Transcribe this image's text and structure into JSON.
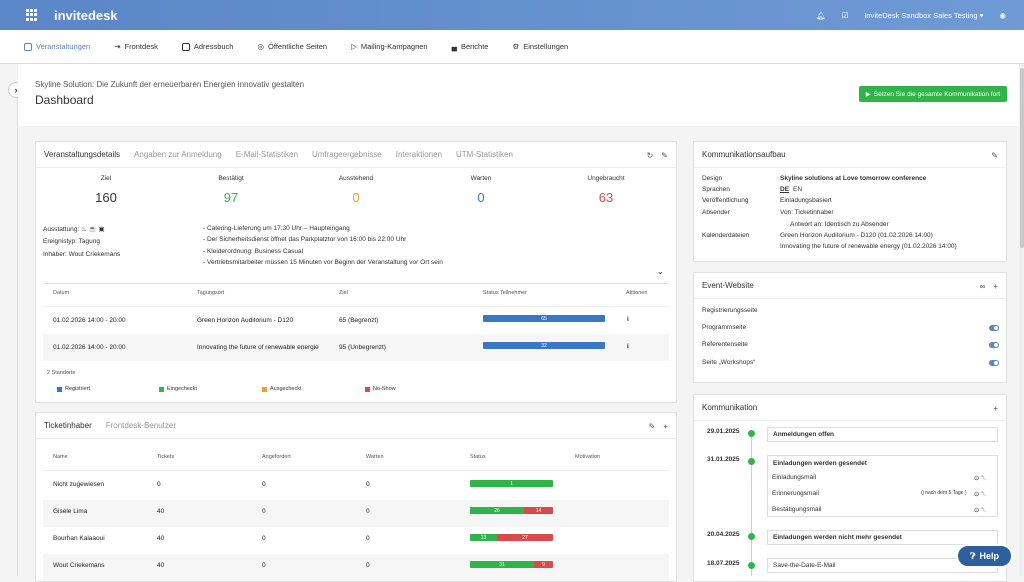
{
  "app": {
    "logo": "invitedesk",
    "account": "InviteDesk Sandbox Sales Testing"
  },
  "nav": [
    "Veranstaltungen",
    "Frontdesk",
    "Adressbuch",
    "Öffentliche Seiten",
    "Mailing-Kampagnen",
    "Berichte",
    "Einstellungen"
  ],
  "header": {
    "event_title": "Skyline Solution: Die Zukunft der erneuerbaren Energien innovativ gestalten",
    "page_title": "Dashboard",
    "action_button": "Setzen Sie die gesamte Kommunikation fort"
  },
  "details": {
    "tabs": [
      "Veranstaltungsdetails",
      "Angaben zur Anmeldung",
      "E-Mail-Statistiken",
      "Umfrageergebnisse",
      "Interaktionen",
      "UTM-Statistiken"
    ],
    "stats": [
      {
        "label": "Ziel",
        "value": "160",
        "color": "#333333"
      },
      {
        "label": "Bestätigt",
        "value": "97",
        "color": "#2fb44a"
      },
      {
        "label": "Ausstehend",
        "value": "0",
        "color": "#f0a030"
      },
      {
        "label": "Warten",
        "value": "0",
        "color": "#3a78c4"
      },
      {
        "label": "Ungebraucht",
        "value": "63",
        "color": "#d94a4a"
      }
    ],
    "ausstattung_label": "Ausstattung:",
    "ereignistyp": "Ereignistyp: Tagung",
    "inhaber": "Inhaber: Wout Criekemans",
    "notes": [
      "- Catering-Lieferung um 17:30 Uhr – Haupteingang",
      "- Der Sicherheitsdienst öffnet das Parkplatztor von 16:00 bis 22:00 Uhr",
      "- Kleiderordnung: Business Casual",
      "- Vertriebsmitarbeiter müssen 15 Minuten vor Beginn der Veranstaltung vor Ort sein"
    ],
    "columns": [
      "Datum",
      "Tagungsort",
      "Ziel",
      "Status Teilnehmer",
      "Aktionen"
    ],
    "rows": [
      {
        "datum": "01.02.2026 14:00 - 20:00",
        "ort": "Green Horizon Auditorium - D120",
        "ziel": "65 (Begrenzt)",
        "bar": "65"
      },
      {
        "datum": "01.02.2026 14:00 - 20:00",
        "ort": "Innovating the future of renewable energie",
        "ziel": "95 (Unbegrenzt)",
        "bar": "32"
      }
    ],
    "standorte": "2 Standorte",
    "legend": [
      {
        "label": "Registriert",
        "color": "#3a78c4"
      },
      {
        "label": "Eingecheckt",
        "color": "#2fb44a"
      },
      {
        "label": "Ausgecheckt",
        "color": "#f0a030"
      },
      {
        "label": "No-Show",
        "color": "#d94a4a"
      }
    ]
  },
  "tickets": {
    "tabs": [
      "Ticketinhaber",
      "Frontdesk-Benutzer"
    ],
    "columns": [
      "Name",
      "Tickets",
      "Angefordert",
      "Warten",
      "Status",
      "Motivation"
    ],
    "rows": [
      {
        "name": "Nicht zugewiesen",
        "tickets": "0",
        "angefordert": "0",
        "warten": "0",
        "green": "1",
        "red": "",
        "green_frac": 1.0
      },
      {
        "name": "Gisele Lima",
        "tickets": "40",
        "angefordert": "0",
        "warten": "0",
        "green": "26",
        "red": "14",
        "green_frac": 0.65
      },
      {
        "name": "Bourhan Kalaaoui",
        "tickets": "40",
        "angefordert": "0",
        "warten": "0",
        "green": "13",
        "red": "27",
        "green_frac": 0.325
      },
      {
        "name": "Wout Criekemans",
        "tickets": "40",
        "angefordert": "0",
        "warten": "0",
        "green": "31",
        "red": "9",
        "green_frac": 0.775
      }
    ]
  },
  "comm_setup": {
    "title": "Kommunikationsaufbau",
    "design_label": "Design",
    "design_value": "Skyline solutions at Love tomorrow conference",
    "sprachen_label": "Sprachen",
    "sprachen_de": "DE",
    "sprachen_en": "EN",
    "veroeff_label": "Veröffentlichung",
    "veroeff_value": "Einladungsbasiert",
    "absender_label": "Absender",
    "absender_value": "Von: Ticketinhaber",
    "antwort_value": "Antwort an: Identisch zu Absender",
    "kalender_label": "Kalenderdateien",
    "kalender_1": "Green Horizon Auditorium - D120 (01.02.2026 14:00)",
    "kalender_2": "Innovating the future of renewable energy (01.02.2026 14:00)"
  },
  "event_website": {
    "title": "Event-Website",
    "items": [
      "Registrierungsseite",
      "Programmseite",
      "Referentenseite",
      "Seite „Workshops“"
    ]
  },
  "communication": {
    "title": "Kommunikation",
    "dates": [
      "29.01.2025",
      "31.01.2025",
      "20.04.2025",
      "18.07.2025"
    ],
    "box_1": "Anmeldungen offen",
    "box_2": "Einladungen werden gesendet",
    "mails": [
      "Einladungsmail",
      "Erinnerungsmail",
      "Bestätigungsmail"
    ],
    "reminder_note": "(j nach dem 5 Tage )",
    "box_3": "Einladungen werden nicht mehr gesendet",
    "box_4": "Save-the-Date-E-Mail"
  },
  "help": "Help"
}
